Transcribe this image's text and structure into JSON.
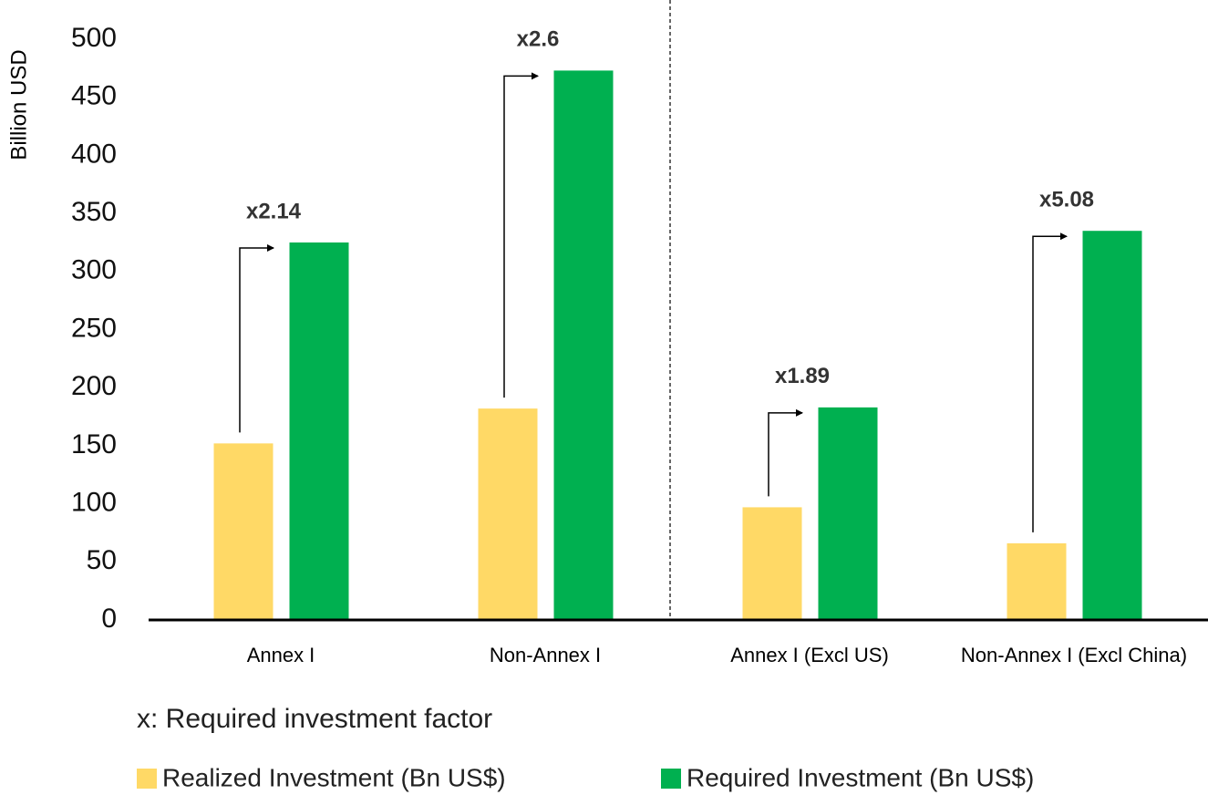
{
  "chart_data": {
    "type": "bar",
    "ylabel": "Billion USD",
    "categories": [
      "Annex I",
      "Non-Annex I",
      "Annex I  (Excl US)",
      "Non-Annex I  (Excl China)"
    ],
    "series": [
      {
        "name": "Realized Investment (Bn US$)",
        "color": "#FFD966",
        "values": [
          152,
          182,
          97,
          66
        ]
      },
      {
        "name": "Required Investment (Bn US$)",
        "color": "#00B050",
        "values": [
          325,
          473,
          183,
          335
        ]
      }
    ],
    "annotations": [
      "x2.14",
      "x2.6",
      "x1.89",
      "x5.08"
    ],
    "note": "x: Required investment factor",
    "ylim": [
      0,
      500
    ],
    "yticks": [
      0,
      50,
      100,
      150,
      200,
      250,
      300,
      350,
      400,
      450,
      500
    ],
    "grid": false
  }
}
